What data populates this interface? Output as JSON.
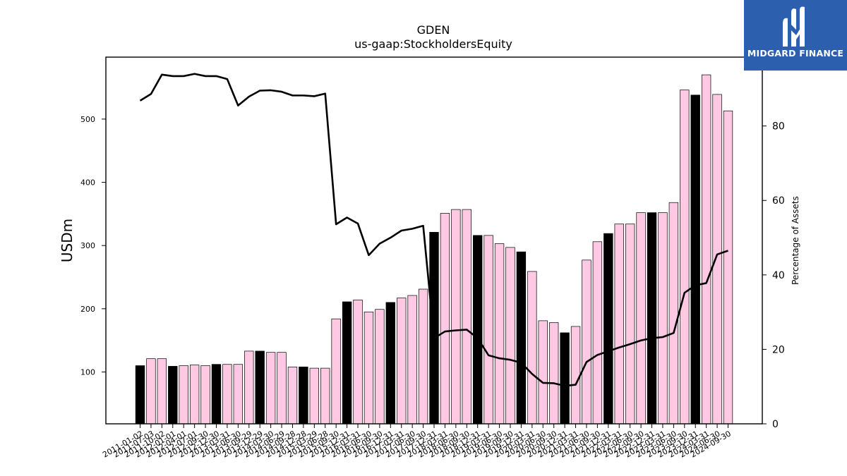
{
  "brand": {
    "name": "MIDGARD FINANCE",
    "icon": "midgard-m-logo-icon",
    "bg": "#2c5fae"
  },
  "chart_data": {
    "type": "bar",
    "title": "GDEN",
    "subtitle": "us-gaap:StockholdersEquity",
    "ylabel": "USDm",
    "y2label": "Percentage of Assets",
    "ylim": [
      18,
      598
    ],
    "y2lim": [
      0,
      98.5
    ],
    "yticks": [
      100,
      200,
      300,
      400,
      500
    ],
    "y2ticks": [
      0,
      20,
      40,
      60,
      80
    ],
    "bar_fill_colors": {
      "annual": "#000000",
      "quarterly": "#ffc9e3"
    },
    "line_color": "#000000",
    "categories": [
      "2011-01-02",
      "2011-07-03",
      "2011-10-02",
      "2012-01-01",
      "2012-04-01",
      "2012-07-01",
      "2012-09-30",
      "2012-12-30",
      "2013-03-31",
      "2013-06-30",
      "2013-09-29",
      "2013-12-29",
      "2014-03-30",
      "2014-06-29",
      "2014-09-28",
      "2014-12-28",
      "2015-03-29",
      "2015-06-28",
      "2015-09-30",
      "2015-12-31",
      "2016-03-31",
      "2016-06-30",
      "2016-09-30",
      "2016-12-31",
      "2017-03-31",
      "2017-06-30",
      "2017-09-30",
      "2017-12-31",
      "2018-03-31",
      "2018-06-30",
      "2018-09-30",
      "2018-12-31",
      "2019-03-31",
      "2019-06-30",
      "2019-09-30",
      "2019-12-31",
      "2020-03-31",
      "2020-06-30",
      "2020-09-30",
      "2020-12-31",
      "2021-03-31",
      "2021-06-30",
      "2021-09-30",
      "2021-12-31",
      "2022-03-31",
      "2022-06-30",
      "2022-09-30",
      "2022-12-31",
      "2023-03-31",
      "2023-06-30",
      "2023-09-30",
      "2023-12-31",
      "2024-03-31",
      "2024-06-30",
      "2024-09-30"
    ],
    "series": [
      {
        "kind": "bar",
        "values": [
          110,
          121,
          121,
          109,
          110,
          111,
          110,
          112,
          112,
          112,
          133,
          133,
          131,
          131,
          108,
          108,
          106,
          106,
          184,
          211,
          214,
          195,
          199,
          210,
          217,
          221,
          231,
          321,
          351,
          357,
          357,
          316,
          316,
          303,
          297,
          290,
          259,
          181,
          178,
          162,
          172,
          277,
          306,
          319,
          334,
          334,
          352,
          352,
          352,
          368,
          546,
          538,
          570,
          539,
          513
        ],
        "annual": [
          true,
          false,
          false,
          true,
          false,
          false,
          false,
          true,
          false,
          false,
          false,
          true,
          false,
          false,
          false,
          true,
          false,
          false,
          false,
          true,
          false,
          false,
          false,
          true,
          false,
          false,
          false,
          true,
          false,
          false,
          false,
          true,
          false,
          false,
          false,
          true,
          false,
          false,
          false,
          true,
          false,
          false,
          false,
          true,
          false,
          false,
          false,
          true,
          false,
          false,
          false,
          true,
          false,
          false,
          false
        ]
      },
      {
        "kind": "line",
        "axis": "right",
        "values": [
          86.8,
          88.6,
          93.8,
          93.4,
          93.4,
          94.0,
          93.4,
          93.4,
          92.6,
          85.5,
          87.9,
          89.5,
          89.6,
          89.2,
          88.2,
          88.2,
          88.0,
          88.7,
          53.6,
          55.4,
          53.8,
          45.3,
          48.4,
          50.0,
          51.9,
          52.4,
          53.2,
          23.0,
          24.8,
          25.1,
          25.3,
          23.0,
          18.4,
          17.6,
          17.2,
          16.4,
          13.4,
          11.0,
          10.9,
          10.2,
          10.5,
          16.6,
          18.5,
          19.5,
          20.5,
          21.4,
          22.4,
          23.0,
          23.3,
          24.4,
          35.2,
          37.2,
          37.8,
          45.5,
          46.5
        ]
      }
    ]
  }
}
